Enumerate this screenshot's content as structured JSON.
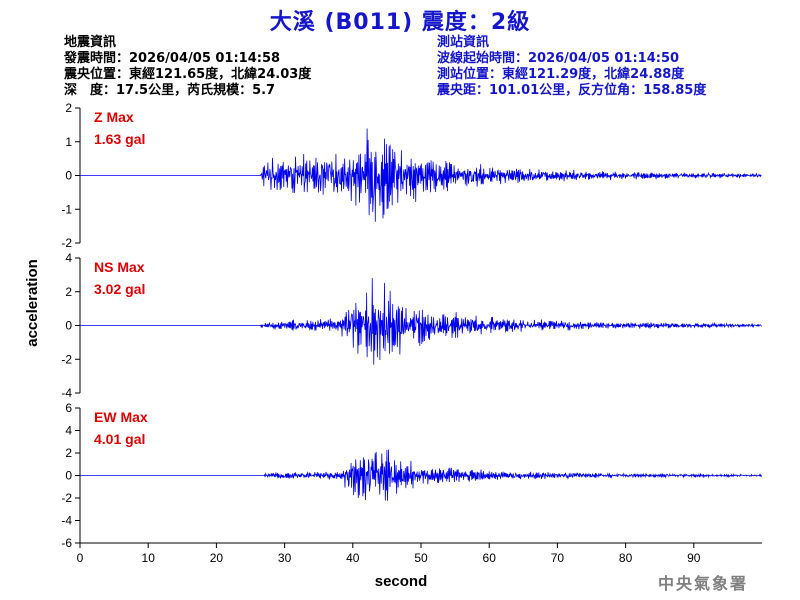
{
  "header": {
    "title": "大溪 (B011) 震度：2級"
  },
  "quake_info": {
    "heading": "地震資訊",
    "origin_time": "發震時間：2026/04/05 01:14:58",
    "epicenter": "震央位置：東經121.65度，北緯24.03度",
    "depth_magnitude": "深　度：17.5公里，芮氏規模：5.7"
  },
  "station_info": {
    "heading": "測站資訊",
    "wave_start": "波線起始時間：2026/04/05 01:14:50",
    "location": "測站位置：東經121.29度，北緯24.88度",
    "distance": "震央距：101.01公里，反方位角：158.85度"
  },
  "footer": {
    "agency": "中央氣象署"
  },
  "colors": {
    "trace": "#0000ee",
    "title": "#1515cc",
    "max_label": "#e00000"
  },
  "chart_data": {
    "type": "line",
    "xlabel": "second",
    "ylabel": "acceleration",
    "xlim": [
      0,
      100
    ],
    "x_ticks": [
      0,
      10,
      20,
      30,
      40,
      50,
      60,
      70,
      80,
      90
    ],
    "grid": false,
    "panels": [
      {
        "component": "Z",
        "max_name": "Z Max",
        "max_value": "1.63 gal",
        "max_abs": 1.63,
        "ylim": [
          -2,
          2
        ],
        "y_ticks": [
          2,
          1,
          0,
          -1,
          -2
        ],
        "signal_onset_s": 26.5,
        "envelope": [
          {
            "t": 26.5,
            "amp": 0.2
          },
          {
            "t": 27,
            "amp": 0.5
          },
          {
            "t": 32,
            "amp": 0.65
          },
          {
            "t": 38,
            "amp": 0.7
          },
          {
            "t": 41,
            "amp": 1.1
          },
          {
            "t": 43,
            "amp": 1.63
          },
          {
            "t": 46,
            "amp": 1.2
          },
          {
            "t": 52,
            "amp": 0.55
          },
          {
            "t": 62,
            "amp": 0.3
          },
          {
            "t": 75,
            "amp": 0.15
          },
          {
            "t": 100,
            "amp": 0.06
          }
        ]
      },
      {
        "component": "NS",
        "max_name": "NS Max",
        "max_value": "3.02 gal",
        "max_abs": 3.02,
        "ylim": [
          -4,
          4
        ],
        "y_ticks": [
          4,
          2,
          0,
          -2,
          -4
        ],
        "signal_onset_s": 26.5,
        "envelope": [
          {
            "t": 26.5,
            "amp": 0.15
          },
          {
            "t": 30,
            "amp": 0.35
          },
          {
            "t": 38,
            "amp": 0.45
          },
          {
            "t": 40,
            "amp": 1.8
          },
          {
            "t": 43,
            "amp": 3.02
          },
          {
            "t": 47,
            "amp": 2.0
          },
          {
            "t": 52,
            "amp": 1.0
          },
          {
            "t": 62,
            "amp": 0.5
          },
          {
            "t": 75,
            "amp": 0.25
          },
          {
            "t": 100,
            "amp": 0.1
          }
        ]
      },
      {
        "component": "EW",
        "max_name": "EW Max",
        "max_value": "4.01 gal",
        "max_abs": 4.01,
        "ylim": [
          -6,
          6
        ],
        "y_ticks": [
          6,
          4,
          2,
          0,
          -2,
          -4,
          -6
        ],
        "signal_onset_s": 27,
        "envelope": [
          {
            "t": 27,
            "amp": 0.2
          },
          {
            "t": 30,
            "amp": 0.35
          },
          {
            "t": 38,
            "amp": 0.4
          },
          {
            "t": 40,
            "amp": 2.2
          },
          {
            "t": 43,
            "amp": 4.01
          },
          {
            "t": 46,
            "amp": 2.0
          },
          {
            "t": 52,
            "amp": 0.9
          },
          {
            "t": 62,
            "amp": 0.45
          },
          {
            "t": 75,
            "amp": 0.25
          },
          {
            "t": 100,
            "amp": 0.1
          }
        ]
      }
    ]
  }
}
